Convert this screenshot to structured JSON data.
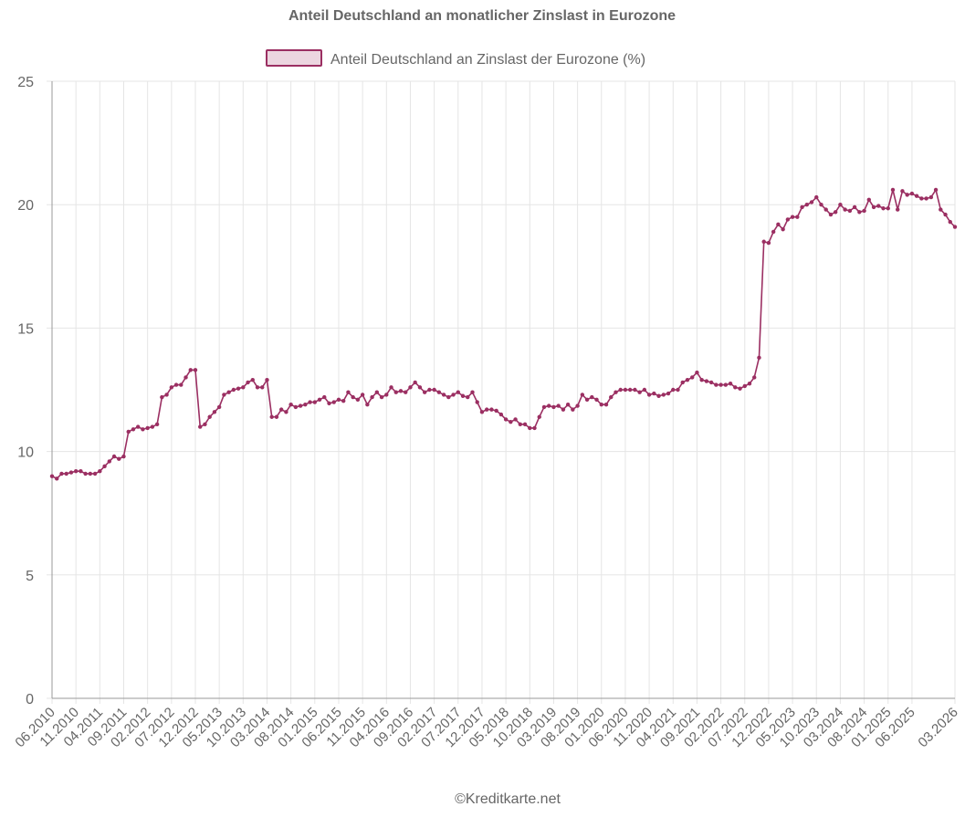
{
  "chart_data": {
    "type": "line",
    "title": "Anteil Deutschland an monatlicher Zinslast in Eurozone",
    "footer": "©Kreditkarte.net",
    "xlabel": "",
    "ylabel": "",
    "ylim": [
      0,
      25
    ],
    "yticks": [
      "0",
      "5",
      "10",
      "15",
      "20",
      "25"
    ],
    "grid": true,
    "legend_position": "top",
    "x_tick_labels": [
      "06.2010",
      "11.2010",
      "04.2011",
      "09.2011",
      "02.2012",
      "07.2012",
      "12.2012",
      "05.2013",
      "10.2013",
      "03.2014",
      "08.2014",
      "01.2015",
      "06.2015",
      "11.2015",
      "04.2016",
      "09.2016",
      "02.2017",
      "07.2017",
      "12.2017",
      "05.2018",
      "10.2018",
      "03.2019",
      "08.2019",
      "01.2020",
      "06.2020",
      "11.2020",
      "04.2021",
      "09.2021",
      "02.2022",
      "07.2022",
      "12.2022",
      "05.2023",
      "10.2023",
      "03.2024",
      "08.2024",
      "01.2025",
      "06.2025",
      "03.2026"
    ],
    "x_start": "06.2010",
    "x_end": "03.2026",
    "series": [
      {
        "name": "Anteil Deutschland an Zinslast der Eurozone (%)",
        "color": "#9b2f62",
        "fill": "#ecd6e0",
        "values": [
          9.0,
          8.9,
          9.1,
          9.1,
          9.15,
          9.2,
          9.2,
          9.1,
          9.1,
          9.1,
          9.2,
          9.4,
          9.6,
          9.8,
          9.7,
          9.8,
          10.8,
          10.9,
          11.0,
          10.9,
          10.95,
          11.0,
          11.1,
          12.2,
          12.3,
          12.6,
          12.7,
          12.7,
          13.0,
          13.3,
          13.3,
          11.0,
          11.1,
          11.4,
          11.6,
          11.8,
          12.3,
          12.4,
          12.5,
          12.55,
          12.6,
          12.8,
          12.9,
          12.6,
          12.6,
          12.9,
          11.4,
          11.4,
          11.7,
          11.6,
          11.9,
          11.8,
          11.85,
          11.9,
          12.0,
          12.0,
          12.1,
          12.2,
          11.95,
          12.0,
          12.1,
          12.05,
          12.4,
          12.2,
          12.1,
          12.3,
          11.9,
          12.2,
          12.4,
          12.2,
          12.3,
          12.6,
          12.4,
          12.45,
          12.4,
          12.6,
          12.8,
          12.6,
          12.4,
          12.5,
          12.5,
          12.4,
          12.3,
          12.2,
          12.3,
          12.4,
          12.25,
          12.2,
          12.4,
          12.0,
          11.6,
          11.7,
          11.7,
          11.65,
          11.5,
          11.3,
          11.2,
          11.3,
          11.1,
          11.1,
          10.95,
          10.95,
          11.4,
          11.8,
          11.85,
          11.8,
          11.85,
          11.7,
          11.9,
          11.7,
          11.85,
          12.3,
          12.1,
          12.2,
          12.1,
          11.9,
          11.9,
          12.2,
          12.4,
          12.5,
          12.5,
          12.5,
          12.5,
          12.4,
          12.5,
          12.3,
          12.35,
          12.25,
          12.3,
          12.35,
          12.5,
          12.5,
          12.8,
          12.9,
          13.0,
          13.2,
          12.9,
          12.85,
          12.8,
          12.7,
          12.7,
          12.7,
          12.75,
          12.6,
          12.55,
          12.65,
          12.75,
          13.0,
          13.8,
          18.5,
          18.45,
          18.9,
          19.2,
          19.0,
          19.4,
          19.5,
          19.5,
          19.9,
          20.0,
          20.1,
          20.3,
          20.0,
          19.8,
          19.6,
          19.7,
          20.0,
          19.8,
          19.75,
          19.9,
          19.7,
          19.75,
          20.2,
          19.9,
          19.95,
          19.85,
          19.85,
          20.6,
          19.8,
          20.55,
          20.4,
          20.45,
          20.35,
          20.25,
          20.25,
          20.3,
          20.6,
          19.8,
          19.6,
          19.3,
          19.1
        ]
      }
    ]
  }
}
